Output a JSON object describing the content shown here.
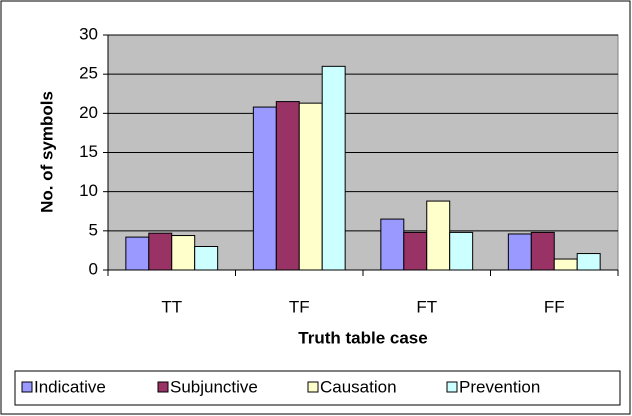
{
  "chart_data": {
    "type": "bar",
    "y_label": "No. of symbols",
    "x_label": "Truth table case",
    "categories": [
      "TT",
      "TF",
      "FT",
      "FF"
    ],
    "series": [
      {
        "name": "Indicative",
        "color": "#9999ff",
        "values": [
          4.2,
          20.8,
          6.5,
          4.6
        ]
      },
      {
        "name": "Subjunctive",
        "color": "#993366",
        "values": [
          4.7,
          21.5,
          4.8,
          4.8
        ]
      },
      {
        "name": "Causation",
        "color": "#ffffcc",
        "values": [
          4.4,
          21.3,
          8.8,
          1.4
        ]
      },
      {
        "name": "Prevention",
        "color": "#ccffff",
        "values": [
          3.0,
          26.0,
          4.8,
          2.1
        ]
      }
    ],
    "ylim": [
      0,
      30
    ],
    "yticks": [
      0,
      5,
      10,
      15,
      20,
      25,
      30
    ],
    "grid": true,
    "legend": "bottom",
    "plot_background": "#c0c0c0"
  }
}
